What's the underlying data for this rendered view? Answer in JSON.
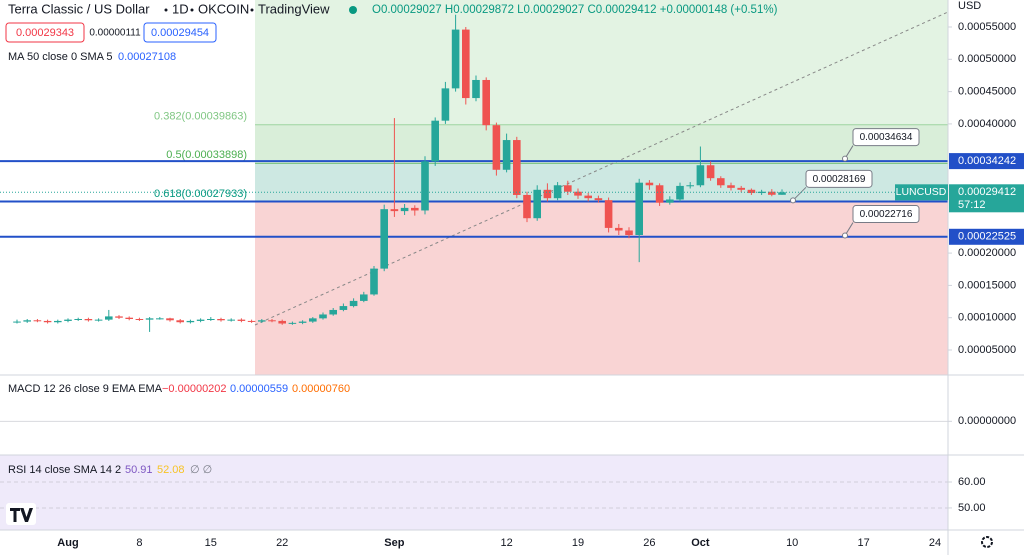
{
  "chart_data": {
    "type": "candlestick",
    "title": "Terra Classic / US Dollar",
    "interval": "1D",
    "exchange": "OKCOIN",
    "source": "TradingView",
    "ohlc": "O0.00029027 H0.00029872 L0.00029027 C0.00029412 +0.00000148 (+0.51%)",
    "quote_boxes": [
      "0.00029343",
      "0.00000111",
      "0.00029454"
    ],
    "ma_legend": "MA 50 close 0 SMA 5",
    "ma_value": "0.00027108",
    "y_unit": "USD",
    "symbol": "LUNCUSD",
    "countdown": "57:12",
    "up_color": "#26a69a",
    "down_color": "#ef5350",
    "categories": [
      null,
      null,
      null,
      null,
      null,
      "Aug",
      null,
      null,
      null,
      null,
      null,
      null,
      "8",
      null,
      null,
      null,
      null,
      null,
      null,
      "15",
      null,
      null,
      null,
      null,
      null,
      null,
      "22",
      null,
      null,
      null,
      null,
      null,
      null,
      null,
      null,
      null,
      null,
      "Sep",
      null,
      null,
      null,
      null,
      null,
      null,
      null,
      null,
      null,
      null,
      "12",
      null,
      null,
      null,
      null,
      null,
      null,
      "19",
      null,
      null,
      null,
      null,
      null,
      null,
      "26",
      null,
      null,
      null,
      null,
      "Oct",
      null,
      null,
      null,
      null,
      null,
      null,
      null,
      null,
      "10",
      null,
      null,
      null,
      null,
      null,
      null,
      "17",
      null,
      null,
      null,
      null,
      null,
      null,
      "24",
      null,
      null
    ],
    "open": [
      9.3e-05,
      9.4e-05,
      9.6e-05,
      9.5e-05,
      9.3e-05,
      9.5e-05,
      9.7e-05,
      9.8e-05,
      9.6e-05,
      9.7e-05,
      0.000102,
      0.0001,
      9.8e-05,
      9.7e-05,
      9.9e-05,
      9.9e-05,
      9.6e-05,
      9.3e-05,
      9.5e-05,
      9.7e-05,
      9.8e-05,
      9.6e-05,
      9.7e-05,
      9.5e-05,
      9.4e-05,
      9.6e-05,
      9.5e-05,
      9.1e-05,
      9.2e-05,
      9.4e-05,
      9.9e-05,
      0.000105,
      0.000112,
      0.000118,
      0.000126,
      0.000136,
      0.000176,
      0.000268,
      0.000265,
      0.00027,
      0.000266,
      0.000342,
      0.000405,
      0.000455,
      0.000546,
      0.00044,
      0.000468,
      0.000398,
      0.000329,
      0.000375,
      0.00029,
      0.000254,
      0.000298,
      0.000285,
      0.000305,
      0.000295,
      0.000289,
      0.000285,
      0.000282,
      0.000239,
      0.000235,
      0.000228,
      0.000309,
      0.000305,
      0.000278,
      0.000283,
      0.000304,
      0.000305,
      0.000336,
      0.000316,
      0.000305,
      0.000301,
      0.000298,
      0.000293,
      0.000295,
      0.00029027,
      null,
      null,
      null,
      null,
      null,
      null,
      null,
      null,
      null,
      null,
      null,
      null,
      null,
      null,
      null,
      null,
      null
    ],
    "high": [
      9.7e-05,
      9.8e-05,
      9.8e-05,
      9.7e-05,
      9.7e-05,
      9.9e-05,
      0.0001,
      0.0001,
      9.9e-05,
      0.000112,
      0.000104,
      0.000102,
      0.0001,
      0.000101,
      0.000101,
      0.0001,
      9.8e-05,
      9.7e-05,
      9.9e-05,
      0.000101,
      0.0001,
      9.9e-05,
      9.9e-05,
      9.7e-05,
      9.8e-05,
      9.8e-05,
      9.7e-05,
      9.4e-05,
      9.6e-05,
      0.000101,
      0.000108,
      0.000115,
      0.000122,
      0.00013,
      0.00014,
      0.00018,
      0.000275,
      0.000409,
      0.000276,
      0.000274,
      0.00035,
      0.00041,
      0.000465,
      0.000569,
      0.00055,
      0.000475,
      0.000472,
      0.000402,
      0.000385,
      0.00038,
      0.000295,
      0.000305,
      0.000308,
      0.00031,
      0.000312,
      0.0003,
      0.000293,
      0.000289,
      0.000286,
      0.000245,
      0.00024,
      0.000315,
      0.000313,
      0.000308,
      0.000288,
      0.000309,
      0.00031,
      0.000365,
      0.000342,
      0.000319,
      0.000309,
      0.000304,
      0.0003,
      0.000298,
      0.000299,
      0.00029872,
      null,
      null,
      null,
      null,
      null,
      null,
      null,
      null,
      null,
      null,
      null,
      null,
      null,
      null,
      null,
      null,
      null
    ],
    "low": [
      9.1e-05,
      9.2e-05,
      9.3e-05,
      9.1e-05,
      9.1e-05,
      9.3e-05,
      9.5e-05,
      9.4e-05,
      9.4e-05,
      9.5e-05,
      9.8e-05,
      9.6e-05,
      9.5e-05,
      7.8e-05,
      9.7e-05,
      9.4e-05,
      9.1e-05,
      9.1e-05,
      9.3e-05,
      9.5e-05,
      9.4e-05,
      9.4e-05,
      9.3e-05,
      9.2e-05,
      9.2e-05,
      9.3e-05,
      8.9e-05,
      8.9e-05,
      9e-05,
      9.2e-05,
      9.7e-05,
      0.000103,
      0.00011,
      0.000116,
      0.000124,
      0.000134,
      0.000172,
      0.000256,
      0.000259,
      0.000258,
      0.00026,
      0.000335,
      0.0004,
      0.00045,
      0.00043,
      0.000435,
      0.00039,
      0.00032,
      0.000325,
      0.000285,
      0.000248,
      0.00025,
      0.00028,
      0.000282,
      0.00029,
      0.000284,
      0.00028,
      0.000278,
      0.000232,
      0.000228,
      0.000223,
      0.000186,
      0.000298,
      0.000273,
      0.000275,
      0.00028,
      0.0003,
      0.000302,
      0.000312,
      0.000301,
      0.000297,
      0.000294,
      0.00029,
      0.00029,
      0.000288,
      0.00029027,
      null,
      null,
      null,
      null,
      null,
      null,
      null,
      null,
      null,
      null,
      null,
      null,
      null,
      null,
      null,
      null,
      null
    ],
    "close": [
      9.4e-05,
      9.6e-05,
      9.5e-05,
      9.3e-05,
      9.5e-05,
      9.7e-05,
      9.8e-05,
      9.6e-05,
      9.7e-05,
      0.000102,
      0.0001,
      9.8e-05,
      9.7e-05,
      9.9e-05,
      9.9e-05,
      9.6e-05,
      9.3e-05,
      9.5e-05,
      9.7e-05,
      9.8e-05,
      9.6e-05,
      9.7e-05,
      9.5e-05,
      9.4e-05,
      9.6e-05,
      9.5e-05,
      9.1e-05,
      9.2e-05,
      9.4e-05,
      9.9e-05,
      0.000105,
      0.000112,
      0.000118,
      0.000126,
      0.000136,
      0.000176,
      0.000268,
      0.000265,
      0.00027,
      0.000266,
      0.000342,
      0.000405,
      0.000455,
      0.000546,
      0.00044,
      0.000468,
      0.000398,
      0.000329,
      0.000375,
      0.00029,
      0.000254,
      0.000298,
      0.000285,
      0.000305,
      0.000295,
      0.000289,
      0.000285,
      0.000282,
      0.000239,
      0.000235,
      0.000228,
      0.000309,
      0.000305,
      0.000278,
      0.000283,
      0.000304,
      0.000305,
      0.000336,
      0.000316,
      0.000305,
      0.000301,
      0.000298,
      0.000293,
      0.000295,
      0.00029027,
      0.00029412,
      null,
      null,
      null,
      null,
      null,
      null,
      null,
      null,
      null,
      null,
      null,
      null,
      null,
      null,
      null,
      null,
      null
    ],
    "ylim": [
      1.13e-05,
      0.0005918
    ],
    "yticks": [
      {
        "value": 5e-05,
        "label": "0.00005000"
      },
      {
        "value": 0.0001,
        "label": "0.00010000"
      },
      {
        "value": 0.00015,
        "label": "0.00015000"
      },
      {
        "value": 0.0002,
        "label": "0.00020000"
      },
      {
        "value": 0.0004,
        "label": "0.00040000"
      },
      {
        "value": 0.00045,
        "label": "0.00045000"
      },
      {
        "value": 0.0005,
        "label": "0.00050000"
      },
      {
        "value": 0.00055,
        "label": "0.00055000"
      }
    ],
    "fib_levels": [
      {
        "value": 0.00039863,
        "label": "0.382(0.00039863)"
      },
      {
        "value": 0.00033898,
        "label": "0.5(0.00033898)"
      },
      {
        "value": 0.00027933,
        "label": "0.618(0.00027933)"
      }
    ],
    "levels": [
      0.00034242,
      0.00027993,
      0.00022525
    ],
    "callouts": [
      0.00034634,
      0.00028169,
      0.00022716
    ],
    "macd_panel": {
      "legend": "MACD 12 26 close 9 EMA EMA",
      "values": [
        "−0.00000202",
        "0.00000559",
        "0.00000760"
      ],
      "ylim": [
        -4e-06,
        5.5e-06
      ],
      "yticks": [
        {
          "value": 0,
          "label": "0.00000000"
        }
      ]
    },
    "rsi_panel": {
      "legend": "RSI 14 close SMA 14 2",
      "values": [
        "50.91",
        "52.08",
        "∅ ∅"
      ],
      "ylim": [
        41.5,
        70.4
      ],
      "yticks": [
        {
          "value": 60,
          "label": "60.00"
        },
        {
          "value": 50,
          "label": "50.00"
        }
      ]
    }
  }
}
